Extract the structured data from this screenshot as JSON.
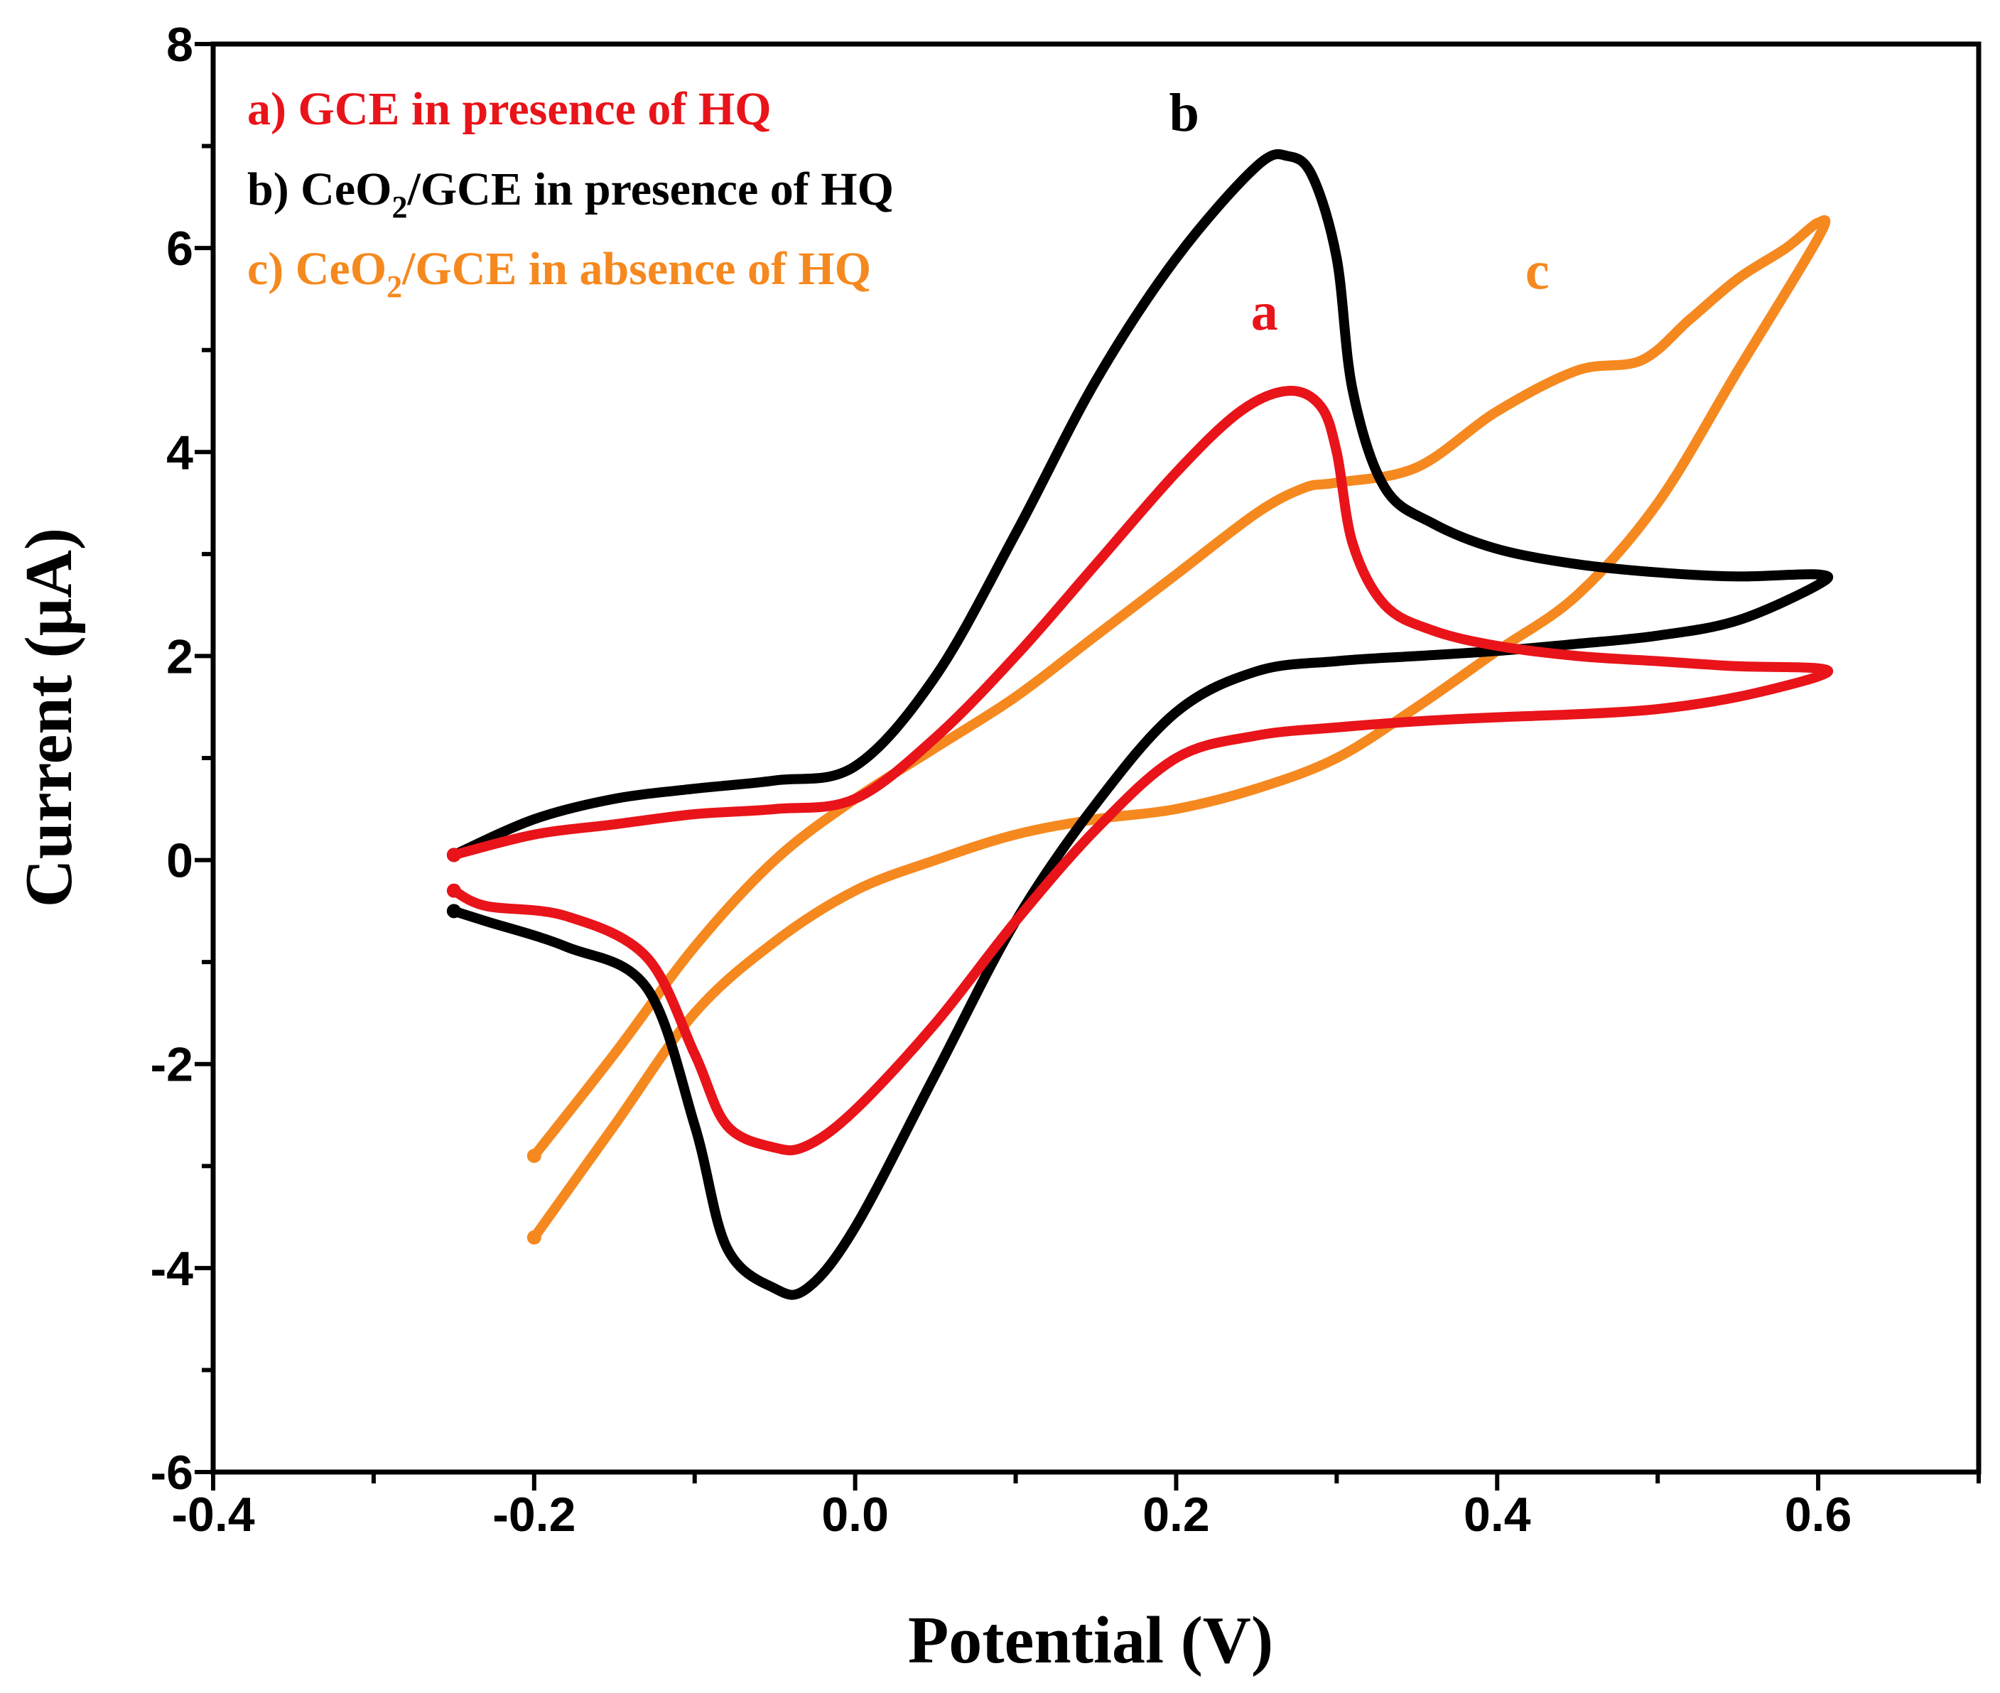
{
  "chart_data": {
    "type": "line",
    "title": "",
    "xlabel": "Potential (V)",
    "ylabel": "Current (μA)",
    "xlim": [
      -0.4,
      0.7
    ],
    "ylim": [
      -6,
      8
    ],
    "xticks": [
      -0.4,
      -0.2,
      0.0,
      0.2,
      0.4,
      0.6
    ],
    "xtick_labels": [
      "-0.4",
      "-0.2",
      "0.0",
      "0.2",
      "0.4",
      "0.6"
    ],
    "yticks": [
      -6,
      -4,
      -2,
      0,
      2,
      4,
      6,
      8
    ],
    "ytick_labels": [
      "-6",
      "-4",
      "-2",
      "0",
      "2",
      "4",
      "6",
      "8"
    ],
    "grid": false,
    "legend_position": "top-left",
    "legend": [
      {
        "id": "a",
        "prefix": "a) GCE in presence of HQ",
        "sub": "",
        "suffix": "",
        "color": "#e8141a"
      },
      {
        "id": "b",
        "prefix": "b) CeO",
        "sub": "2",
        "suffix": "/GCE in presence of HQ",
        "color": "#000000"
      },
      {
        "id": "c",
        "prefix": "c) CeO",
        "sub": "2",
        "suffix": "/GCE in absence of HQ",
        "color": "#f5891f"
      }
    ],
    "annotations": [
      {
        "text": "b",
        "x": 0.205,
        "y": 7.15,
        "color": "#000000"
      },
      {
        "text": "a",
        "x": 0.255,
        "y": 5.2,
        "color": "#e8141a"
      },
      {
        "text": "c",
        "x": 0.425,
        "y": 5.6,
        "color": "#f5891f"
      }
    ],
    "series": [
      {
        "name": "a) GCE in presence of HQ",
        "color": "#e8141a",
        "x": [
          -0.25,
          -0.2,
          -0.15,
          -0.1,
          -0.05,
          0.0,
          0.05,
          0.1,
          0.15,
          0.2,
          0.24,
          0.27,
          0.29,
          0.3,
          0.31,
          0.33,
          0.36,
          0.4,
          0.45,
          0.5,
          0.55,
          0.6,
          0.6,
          0.55,
          0.5,
          0.45,
          0.4,
          0.35,
          0.3,
          0.25,
          0.2,
          0.15,
          0.1,
          0.05,
          0.0,
          -0.03,
          -0.05,
          -0.08,
          -0.1,
          -0.13,
          -0.18,
          -0.23,
          -0.25
        ],
        "y": [
          0.05,
          0.25,
          0.35,
          0.45,
          0.5,
          0.6,
          1.2,
          2.0,
          2.9,
          3.8,
          4.4,
          4.6,
          4.45,
          4.0,
          3.1,
          2.5,
          2.25,
          2.1,
          2.0,
          1.95,
          1.9,
          1.88,
          1.8,
          1.6,
          1.48,
          1.43,
          1.4,
          1.36,
          1.3,
          1.22,
          1.0,
          0.3,
          -0.6,
          -1.6,
          -2.45,
          -2.8,
          -2.82,
          -2.6,
          -1.9,
          -0.95,
          -0.55,
          -0.45,
          -0.3
        ]
      },
      {
        "name": "b) CeO2/GCE in presence of HQ",
        "color": "#000000",
        "x": [
          -0.25,
          -0.2,
          -0.15,
          -0.1,
          -0.05,
          0.0,
          0.05,
          0.1,
          0.15,
          0.2,
          0.25,
          0.27,
          0.285,
          0.3,
          0.31,
          0.33,
          0.36,
          0.4,
          0.45,
          0.5,
          0.55,
          0.6,
          0.6,
          0.55,
          0.5,
          0.45,
          0.4,
          0.35,
          0.3,
          0.25,
          0.2,
          0.15,
          0.1,
          0.05,
          0.0,
          -0.03,
          -0.05,
          -0.08,
          -0.1,
          -0.13,
          -0.18,
          -0.23,
          -0.25
        ],
        "y": [
          0.05,
          0.4,
          0.6,
          0.7,
          0.78,
          0.92,
          1.8,
          3.2,
          4.7,
          5.9,
          6.8,
          6.9,
          6.7,
          5.9,
          4.6,
          3.65,
          3.3,
          3.05,
          2.9,
          2.82,
          2.78,
          2.8,
          2.7,
          2.35,
          2.2,
          2.12,
          2.05,
          2.0,
          1.95,
          1.85,
          1.45,
          0.55,
          -0.6,
          -2.1,
          -3.6,
          -4.2,
          -4.2,
          -3.8,
          -2.6,
          -1.25,
          -0.85,
          -0.6,
          -0.5
        ]
      },
      {
        "name": "c) CeO2/GCE in absence of HQ",
        "color": "#f5891f",
        "x": [
          -0.2,
          -0.15,
          -0.1,
          -0.05,
          0.0,
          0.05,
          0.1,
          0.15,
          0.2,
          0.25,
          0.28,
          0.3,
          0.35,
          0.4,
          0.45,
          0.49,
          0.52,
          0.55,
          0.58,
          0.6,
          0.6,
          0.55,
          0.5,
          0.45,
          0.4,
          0.35,
          0.3,
          0.25,
          0.2,
          0.15,
          0.1,
          0.05,
          0.0,
          -0.05,
          -0.1,
          -0.15,
          -0.2
        ],
        "y": [
          -2.9,
          -1.9,
          -0.85,
          0.0,
          0.6,
          1.1,
          1.6,
          2.2,
          2.8,
          3.4,
          3.65,
          3.7,
          3.85,
          4.4,
          4.8,
          4.9,
          5.3,
          5.7,
          6.0,
          6.25,
          6.1,
          4.8,
          3.5,
          2.6,
          2.05,
          1.5,
          1.0,
          0.7,
          0.5,
          0.4,
          0.25,
          0.0,
          -0.3,
          -0.8,
          -1.5,
          -2.6,
          -3.7
        ]
      }
    ]
  }
}
